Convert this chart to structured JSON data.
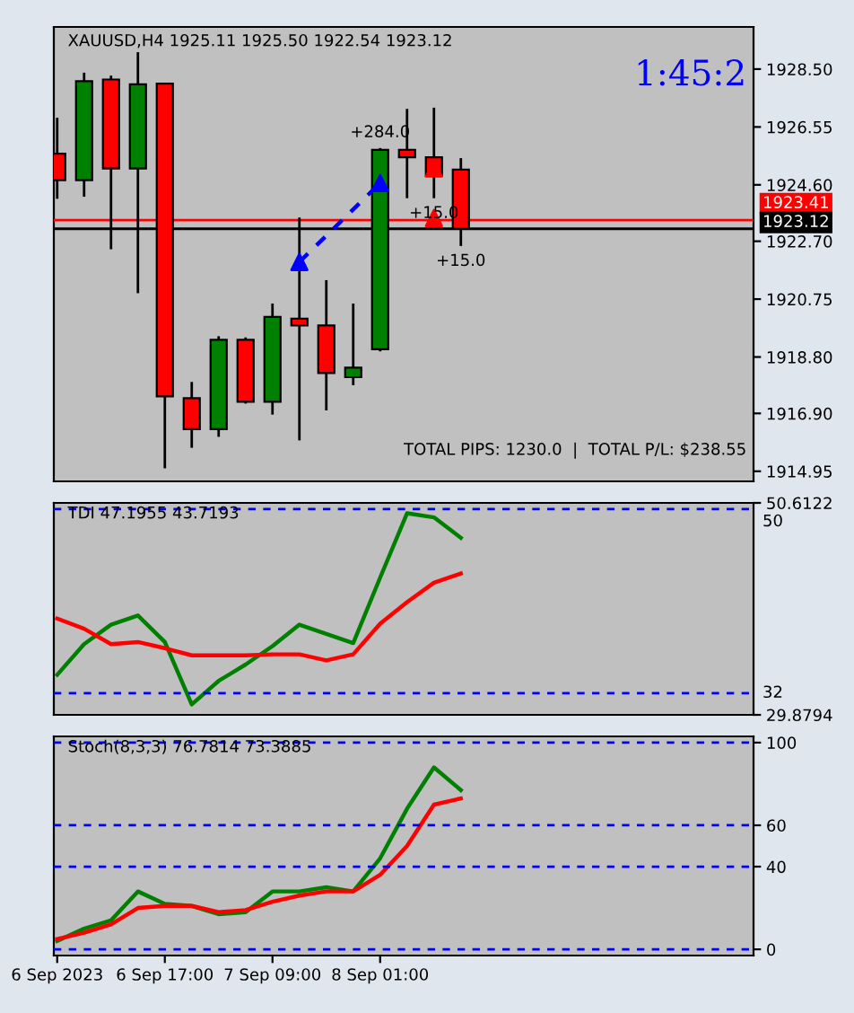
{
  "chart_data": [
    {
      "type": "candlestick",
      "title": "XAUUSD,H4 1925.11 1925.50 1922.54 1923.12",
      "x": [
        "2023-09-06T01:00",
        "2023-09-06T05:00",
        "2023-09-06T09:00",
        "2023-09-06T13:00",
        "2023-09-06T17:00",
        "2023-09-06T21:00",
        "2023-09-07T01:00",
        "2023-09-07T05:00",
        "2023-09-07T09:00",
        "2023-09-07T13:00",
        "2023-09-07T17:00",
        "2023-09-07T21:00",
        "2023-09-08T01:00",
        "2023-09-08T05:00",
        "2023-09-08T09:00",
        "2023-09-08T13:00"
      ],
      "ohlc": [
        [
          1925.65,
          1926.86,
          1924.13,
          1924.76
        ],
        [
          1924.76,
          1928.38,
          1924.2,
          1928.09
        ],
        [
          1928.15,
          1928.28,
          1922.43,
          1925.15
        ],
        [
          1925.15,
          1929.07,
          1920.95,
          1927.99
        ],
        [
          1928.01,
          1928.01,
          1915.05,
          1917.47
        ],
        [
          1917.41,
          1917.96,
          1915.74,
          1916.37
        ],
        [
          1916.37,
          1919.5,
          1916.11,
          1919.38
        ],
        [
          1919.38,
          1919.46,
          1917.23,
          1917.29
        ],
        [
          1917.29,
          1920.6,
          1916.86,
          1920.15
        ],
        [
          1920.09,
          1923.5,
          1915.99,
          1919.86
        ],
        [
          1919.86,
          1921.39,
          1917.0,
          1918.26
        ],
        [
          1918.12,
          1920.6,
          1917.85,
          1918.44
        ],
        [
          1919.06,
          1925.84,
          1918.99,
          1925.78
        ],
        [
          1925.78,
          1927.16,
          1924.15,
          1925.53
        ],
        [
          1925.53,
          1927.2,
          1924.15,
          1924.9
        ],
        [
          1925.11,
          1925.5,
          1922.54,
          1923.12
        ]
      ],
      "colors": [
        "#ff0000",
        "#008000",
        "#ff0000",
        "#008000",
        "#ff0000",
        "#ff0000",
        "#008000",
        "#ff0000",
        "#008000",
        "#ff0000",
        "#ff0000",
        "#008000",
        "#008000",
        "#ff0000",
        "#ff0000",
        "#ff0000"
      ],
      "series": [
        {
          "type": "line",
          "color": "#0000ff",
          "line_style": "dashed",
          "x": [
            "2023-09-07T13:00",
            "2023-09-08T01:00"
          ],
          "values": [
            1922.0,
            1924.66
          ]
        },
        {
          "type": "scatter",
          "color": "#0000ff",
          "marker": "triangle",
          "x": [
            "2023-09-07T13:00",
            "2023-09-08T01:00"
          ],
          "values": [
            1922.0,
            1924.66
          ]
        },
        {
          "type": "scatter",
          "color": "#ff0000",
          "marker": "triangle",
          "x": [
            "2023-09-08T09:00",
            "2023-09-08T09:00"
          ],
          "values": [
            1925.15,
            1923.48
          ]
        }
      ],
      "xlim": [
        "2023-09-06T00:30",
        "2023-09-10T08:30"
      ],
      "ylim": [
        1914.61,
        1929.92
      ],
      "yticks": [
        {
          "value": 1928.5,
          "label": "1928.50"
        },
        {
          "value": 1926.55,
          "label": "1926.55"
        },
        {
          "value": 1924.6,
          "label": "1924.60"
        },
        {
          "value": 1922.7,
          "label": "1922.70"
        },
        {
          "value": 1920.75,
          "label": "1920.75"
        },
        {
          "value": 1918.8,
          "label": "1918.80"
        },
        {
          "value": 1916.9,
          "label": "1916.90"
        },
        {
          "value": 1914.95,
          "label": "1914.95"
        }
      ],
      "ref_lines": [
        {
          "axis": "y",
          "value": 1923.41,
          "label": "1923.41",
          "color": "#ff0000",
          "line_style": "solid"
        },
        {
          "axis": "y",
          "value": 1923.12,
          "label": "1923.12",
          "color": "#000000",
          "line_style": "solid"
        }
      ],
      "annotations": [
        {
          "text": "+284.0",
          "x": "2023-09-08T01:00",
          "y": 1925.84
        },
        {
          "text": "+15.0",
          "x": "2023-09-08T09:00",
          "y": 1924.15
        },
        {
          "text": "+15.0",
          "x": "2023-09-08T13:00",
          "y": 1922.54
        },
        "1:45:2",
        "TOTAL PIPS: 1230.0  |  TOTAL P/L: $238.55"
      ],
      "tick_labels": "y"
    },
    {
      "type": "line",
      "title": "TDI 47.1955 43.7193",
      "x": [
        "2023-09-06T01:00",
        "2023-09-06T05:00",
        "2023-09-06T09:00",
        "2023-09-06T13:00",
        "2023-09-06T17:00",
        "2023-09-06T21:00",
        "2023-09-07T01:00",
        "2023-09-07T05:00",
        "2023-09-07T09:00",
        "2023-09-07T13:00",
        "2023-09-07T17:00",
        "2023-09-07T21:00",
        "2023-09-08T01:00",
        "2023-09-08T05:00",
        "2023-09-08T09:00",
        "2023-09-08T13:00"
      ],
      "series": [
        {
          "color": "#008000",
          "values": [
            33.8,
            36.8,
            38.7,
            39.6,
            37.0,
            30.9,
            33.2,
            34.8,
            36.6,
            38.7,
            37.8,
            36.9,
            43.3,
            49.6,
            49.2,
            47.2
          ]
        },
        {
          "color": "#ff0000",
          "values": [
            39.3,
            38.3,
            36.8,
            37.0,
            36.4,
            35.7,
            35.7,
            35.7,
            35.8,
            35.8,
            35.2,
            35.8,
            38.8,
            40.9,
            42.8,
            43.7
          ]
        }
      ],
      "xlim": [
        "2023-09-06T00:30",
        "2023-09-10T08:30"
      ],
      "ylim": [
        29.8794,
        50.6122
      ],
      "yticks": [
        29.8794,
        50.6122
      ],
      "ref_lines": [
        {
          "axis": "y",
          "value": 50,
          "label": "50",
          "color": "#0000ff",
          "line_style": "dashed"
        },
        {
          "axis": "y",
          "value": 32,
          "label": "32",
          "color": "#0000ff",
          "line_style": "dashed"
        }
      ],
      "tick_labels": "y"
    },
    {
      "type": "line",
      "title": "Stoch(8,3,3) 76.7814 73.3885",
      "x": [
        "2023-09-06T01:00",
        "2023-09-06T05:00",
        "2023-09-06T09:00",
        "2023-09-06T13:00",
        "2023-09-06T17:00",
        "2023-09-06T21:00",
        "2023-09-07T01:00",
        "2023-09-07T05:00",
        "2023-09-07T09:00",
        "2023-09-07T13:00",
        "2023-09-07T17:00",
        "2023-09-07T21:00",
        "2023-09-08T01:00",
        "2023-09-08T05:00",
        "2023-09-08T09:00",
        "2023-09-08T13:00"
      ],
      "series": [
        {
          "color": "#008000",
          "values": [
            4,
            10,
            14,
            28,
            22,
            21,
            17,
            18,
            28,
            28,
            30,
            28,
            44,
            68,
            88,
            77
          ]
        },
        {
          "color": "#ff0000",
          "values": [
            5,
            8,
            12,
            20,
            21,
            21,
            18,
            19,
            23,
            26,
            28,
            28,
            36,
            50,
            70,
            73
          ]
        }
      ],
      "xlim": [
        "2023-09-06T00:30",
        "2023-09-10T08:30"
      ],
      "xticks": [
        {
          "value": "2023-09-06T01:00",
          "label": "6 Sep 2023"
        },
        {
          "value": "2023-09-06T17:00",
          "label": "6 Sep 17:00"
        },
        {
          "value": "2023-09-07T09:00",
          "label": "7 Sep 09:00"
        },
        {
          "value": "2023-09-08T01:00",
          "label": "8 Sep 01:00"
        }
      ],
      "ylim": [
        -3,
        103
      ],
      "yticks": [
        0,
        40,
        60,
        100
      ],
      "ref_lines": [
        {
          "axis": "y",
          "value": 100,
          "color": "#0000ff",
          "line_style": "dashed"
        },
        {
          "axis": "y",
          "value": 60,
          "color": "#0000ff",
          "line_style": "dashed"
        },
        {
          "axis": "y",
          "value": 40,
          "color": "#0000ff",
          "line_style": "dashed"
        },
        {
          "axis": "y",
          "value": 0,
          "color": "#0000ff",
          "line_style": "dashed"
        }
      ]
    }
  ]
}
